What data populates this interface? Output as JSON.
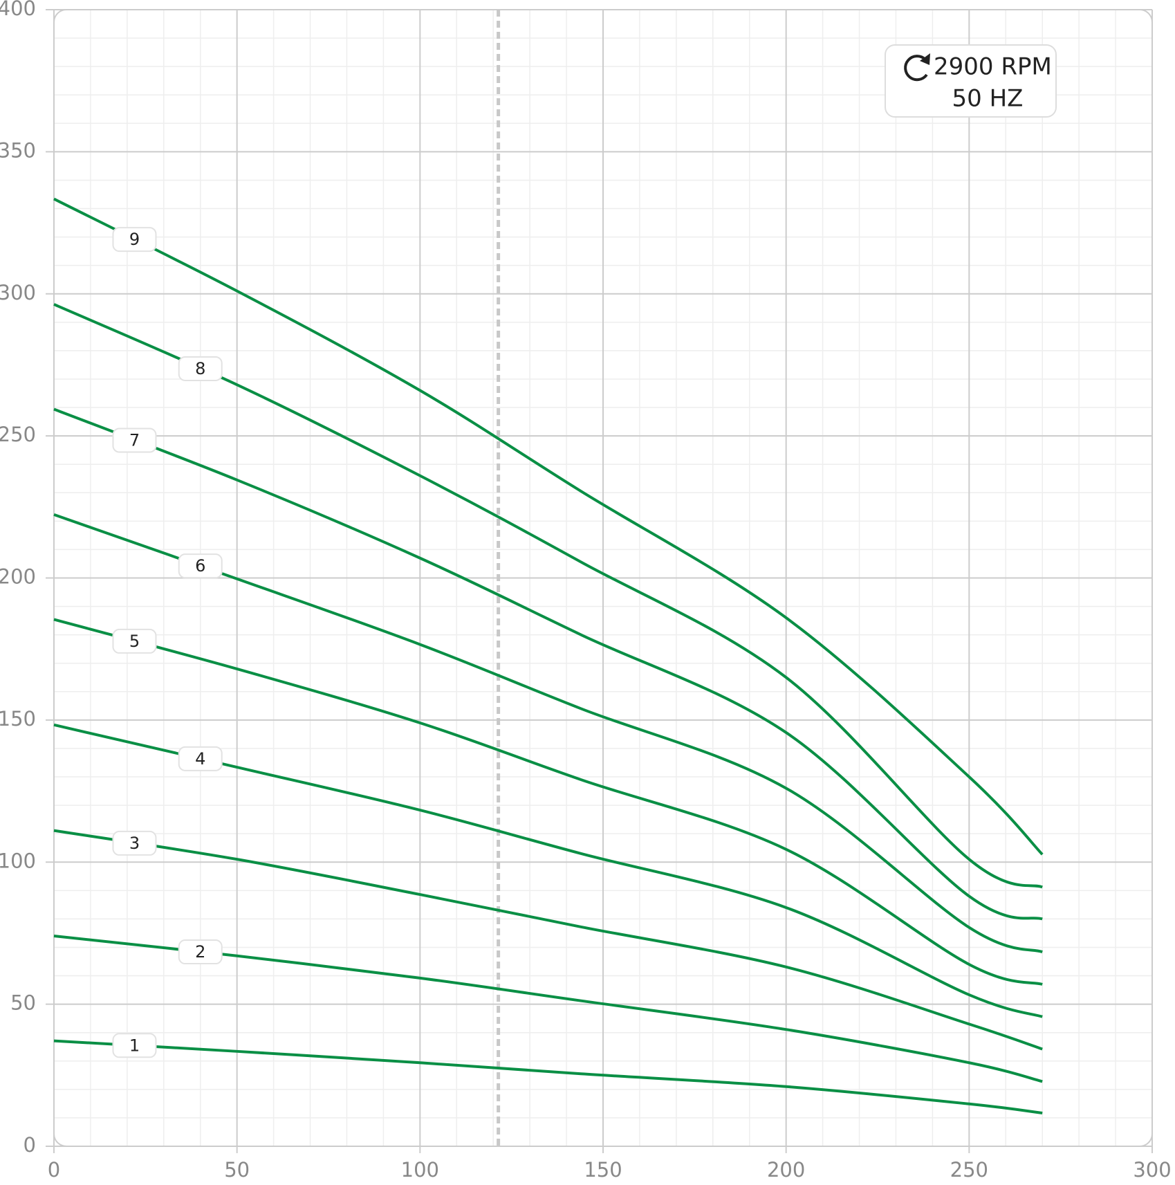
{
  "chart_data": {
    "type": "line",
    "x": [
      0,
      50,
      100,
      144,
      200,
      250,
      270
    ],
    "series": [
      {
        "name": "1",
        "color": "#0a8f45",
        "values": [
          37.1,
          33.4,
          29.4,
          25.5,
          21,
          14.9,
          11.7
        ]
      },
      {
        "name": "2",
        "color": "#0a8f45",
        "values": [
          74,
          67,
          59.2,
          51.2,
          41.1,
          29.4,
          22.8
        ]
      },
      {
        "name": "3",
        "color": "#0a8f45",
        "values": [
          111.1,
          101,
          88.6,
          77.2,
          63.1,
          43,
          34.2
        ]
      },
      {
        "name": "4",
        "color": "#0a8f45",
        "values": [
          148.3,
          133.4,
          118.3,
          103,
          84,
          53.3,
          45.6
        ]
      },
      {
        "name": "5",
        "color": "#0a8f45",
        "values": [
          185.4,
          168,
          149,
          129,
          104.5,
          64,
          57
        ]
      },
      {
        "name": "6",
        "color": "#0a8f45",
        "values": [
          222.3,
          199.7,
          176.6,
          154,
          126,
          77,
          68.4
        ]
      },
      {
        "name": "7",
        "color": "#0a8f45",
        "values": [
          259.4,
          234.5,
          207,
          180,
          145.6,
          88,
          80
        ]
      },
      {
        "name": "8",
        "color": "#0a8f45",
        "values": [
          296.3,
          268,
          236,
          205.6,
          165,
          101,
          91.2
        ]
      },
      {
        "name": "9",
        "color": "#0a8f45",
        "values": [
          333.4,
          301,
          266,
          230.5,
          186,
          130,
          102.7
        ]
      }
    ],
    "reference_x": 121.4,
    "xlim": [
      0,
      300
    ],
    "xticks": [
      0,
      50,
      100,
      150,
      200,
      250,
      300
    ],
    "ylim": [
      0,
      400
    ],
    "yticks": [
      0,
      50,
      100,
      150,
      200,
      250,
      300,
      350,
      400
    ],
    "grid": true,
    "annotation": {
      "speed": "2900 RPM",
      "frequency": "50 HZ"
    }
  }
}
